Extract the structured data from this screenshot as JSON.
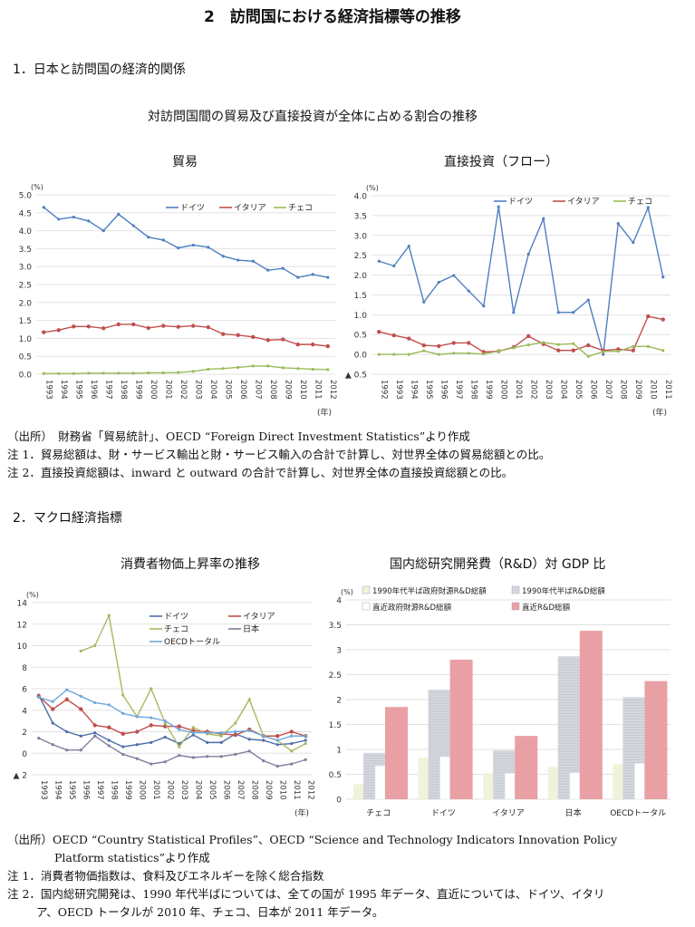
{
  "page_title": "2　訪問国における経済指標等の推移",
  "section1": {
    "heading": "1．日本と訪問国の経済的関係",
    "chart_group_title": "対訪問国間の貿易及び直接投資が全体に占める割合の推移",
    "source": "（出所）　財務省「貿易統計」、OECD “Foreign Direct Investment Statistics”より作成",
    "note1": "注 1．貿易総額は、財・サービス輸出と財・サービス輸入の合計で計算し、対世界全体の貿易総額との比。",
    "note2": "注 2．直接投資総額は、inward と outward の合計で計算し、対世界全体の直接投資総額との比。"
  },
  "section2": {
    "heading": "2．マクロ経済指標",
    "source_line1": "（出所）OECD “Country Statistical Profiles”、OECD “Science and Technology Indicators Innovation Policy",
    "source_line2": "Platform statistics”より作成",
    "note1": "注 1．消費者物価指数は、食料及びエネルギーを除く総合指数",
    "note2_line1": "注 2．国内総研究開発は、1990 年代半ばについては、全ての国が 1995 年データ、直近については、ドイツ、イタリ",
    "note2_line2": "ア、OECD トータルが 2010 年、チェコ、日本が 2011 年データ。"
  },
  "chart_data": [
    {
      "type": "line",
      "title": "貿易",
      "ylabel": "(%)",
      "xlabel": "(年)",
      "ylim": [
        0,
        5
      ],
      "grid": true,
      "legend": "top-right",
      "yticks": [
        0,
        0.5,
        1,
        1.5,
        2,
        2.5,
        3,
        3.5,
        4,
        4.5,
        5
      ],
      "ytick_labels": [
        "0.0",
        "0.5",
        "1.0",
        "1.5",
        "2.0",
        "2.5",
        "3.0",
        "3.5",
        "4.0",
        "4.5",
        "5.0"
      ],
      "x": [
        "1993",
        "1994",
        "1995",
        "1996",
        "1997",
        "1998",
        "1999",
        "2000",
        "2001",
        "2002",
        "2003",
        "2004",
        "2005",
        "2006",
        "2007",
        "2008",
        "2009",
        "2010",
        "2011",
        "2012"
      ],
      "series": [
        {
          "name": "ドイツ",
          "color": "#4f7fbf",
          "values": [
            4.65,
            4.32,
            4.38,
            4.27,
            4.0,
            4.46,
            4.14,
            3.82,
            3.74,
            3.52,
            3.6,
            3.54,
            3.29,
            3.18,
            3.15,
            2.9,
            2.95,
            2.7,
            2.78,
            2.7
          ]
        },
        {
          "name": "イタリア",
          "color": "#c0504d",
          "values": [
            1.17,
            1.23,
            1.33,
            1.33,
            1.28,
            1.39,
            1.39,
            1.29,
            1.35,
            1.32,
            1.35,
            1.31,
            1.12,
            1.09,
            1.04,
            0.95,
            0.97,
            0.83,
            0.83,
            0.78
          ]
        },
        {
          "name": "チェコ",
          "color": "#9bbb59",
          "values": [
            0.02,
            0.02,
            0.02,
            0.03,
            0.03,
            0.03,
            0.03,
            0.04,
            0.04,
            0.05,
            0.08,
            0.14,
            0.16,
            0.19,
            0.23,
            0.23,
            0.18,
            0.16,
            0.14,
            0.13
          ]
        }
      ]
    },
    {
      "type": "line",
      "title": "直接投資（フロー）",
      "ylabel": "(%)",
      "xlabel": "(年)",
      "ylim": [
        -0.5,
        4
      ],
      "grid": true,
      "legend": "top-right",
      "yticks": [
        -0.5,
        0,
        0.5,
        1,
        1.5,
        2,
        2.5,
        3,
        3.5,
        4
      ],
      "ytick_labels": [
        "▲ 0.5",
        "0.0",
        "0.5",
        "1.0",
        "1.5",
        "2.0",
        "2.5",
        "3.0",
        "3.5",
        "4.0"
      ],
      "x": [
        "1992",
        "1993",
        "1994",
        "1995",
        "1996",
        "1997",
        "1998",
        "1999",
        "2000",
        "2001",
        "2002",
        "2003",
        "2004",
        "2005",
        "2006",
        "2007",
        "2008",
        "2009",
        "2010",
        "2011"
      ],
      "series": [
        {
          "name": "ドイツ",
          "color": "#4f7fbf",
          "values": [
            2.35,
            2.23,
            2.73,
            1.32,
            1.82,
            1.99,
            1.6,
            1.22,
            3.72,
            1.06,
            2.53,
            3.42,
            1.06,
            1.06,
            1.37,
            0.0,
            3.3,
            2.82,
            3.7,
            1.95
          ]
        },
        {
          "name": "イタリア",
          "color": "#c0504d",
          "values": [
            0.57,
            0.48,
            0.4,
            0.23,
            0.21,
            0.29,
            0.29,
            0.06,
            0.08,
            0.18,
            0.46,
            0.26,
            0.1,
            0.1,
            0.23,
            0.1,
            0.13,
            0.1,
            0.96,
            0.88
          ]
        },
        {
          "name": "チェコ",
          "color": "#9bbb59",
          "values": [
            0.0,
            0.0,
            0.0,
            0.09,
            0.0,
            0.03,
            0.03,
            0.01,
            0.08,
            0.17,
            0.24,
            0.3,
            0.25,
            0.27,
            -0.05,
            0.07,
            0.08,
            0.2,
            0.2,
            0.1
          ]
        }
      ]
    },
    {
      "type": "line",
      "title": "消費者物価上昇率の推移",
      "ylabel": "(%)",
      "xlabel": "(年)",
      "ylim": [
        -2,
        14
      ],
      "grid": true,
      "legend": "top-right",
      "yticks": [
        -2,
        0,
        2,
        4,
        6,
        8,
        10,
        12,
        14
      ],
      "ytick_labels": [
        "▲ 2",
        "0",
        "2",
        "4",
        "6",
        "8",
        "10",
        "12",
        "14"
      ],
      "x": [
        "1993",
        "1994",
        "1995",
        "1996",
        "1997",
        "1998",
        "1999",
        "2000",
        "2001",
        "2002",
        "2003",
        "2004",
        "2005",
        "2006",
        "2007",
        "2008",
        "2009",
        "2010",
        "2011",
        "2012"
      ],
      "series": [
        {
          "name": "ドイツ",
          "color": "#4f6fa8",
          "values": [
            5.4,
            2.8,
            2.0,
            1.6,
            1.9,
            1.2,
            0.6,
            0.8,
            1.0,
            1.5,
            0.9,
            1.7,
            1.0,
            1.0,
            1.8,
            1.3,
            1.2,
            0.8,
            0.9,
            1.2
          ]
        },
        {
          "name": "イタリア",
          "color": "#c0504d",
          "values": [
            5.3,
            4.1,
            5.0,
            4.1,
            2.6,
            2.4,
            1.8,
            2.0,
            2.6,
            2.5,
            2.5,
            2.1,
            2.0,
            1.8,
            1.7,
            2.2,
            1.6,
            1.6,
            2.0,
            1.6
          ]
        },
        {
          "name": "チェコ",
          "color": "#a8b860",
          "values": [
            null,
            null,
            null,
            9.5,
            10.0,
            12.8,
            5.4,
            3.4,
            6.0,
            2.8,
            0.6,
            2.4,
            1.8,
            1.6,
            2.8,
            5.0,
            1.6,
            1.2,
            0.2,
            0.9
          ]
        },
        {
          "name": "日本",
          "color": "#7f7f9f",
          "values": [
            1.4,
            0.8,
            0.3,
            0.3,
            1.6,
            0.7,
            -0.1,
            -0.5,
            -1.0,
            -0.8,
            -0.2,
            -0.4,
            -0.3,
            -0.3,
            -0.1,
            0.2,
            -0.7,
            -1.2,
            -1.0,
            -0.6
          ]
        },
        {
          "name": "OECDトータル",
          "color": "#6fa8dc",
          "values": [
            5.2,
            4.8,
            5.9,
            5.3,
            4.7,
            4.5,
            3.7,
            3.4,
            3.3,
            3.0,
            2.2,
            1.9,
            1.9,
            1.9,
            2.0,
            2.1,
            1.6,
            1.2,
            1.6,
            1.6
          ]
        }
      ]
    },
    {
      "type": "bar",
      "title": "国内総研究開発費（R&D）対 GDP 比",
      "ylabel": "(%)",
      "ylim": [
        0,
        4
      ],
      "grid": true,
      "legend": "top",
      "yticks": [
        0,
        0.5,
        1,
        1.5,
        2,
        2.5,
        3,
        3.5,
        4
      ],
      "ytick_labels": [
        "0",
        "0.5",
        "1",
        "1.5",
        "2",
        "2.5",
        "3",
        "3.5",
        "4"
      ],
      "categories": [
        "チェコ",
        "ドイツ",
        "イタリア",
        "日本",
        "OECDトータル"
      ],
      "series": [
        {
          "name": "1990年代半ば政府財源R&D総額",
          "color": "#eef3da",
          "values": [
            0.3,
            0.83,
            0.52,
            0.65,
            0.7
          ]
        },
        {
          "name": "1990年代半ばR&D総額",
          "color": "#d4d8de",
          "values": [
            0.93,
            2.2,
            0.98,
            2.87,
            2.05
          ]
        },
        {
          "name": "直近政府財源R&D総額",
          "color": "#ffffff",
          "values": [
            0.67,
            0.85,
            0.52,
            0.53,
            0.72
          ]
        },
        {
          "name": "直近R&D総額",
          "color": "#e8a0a4",
          "values": [
            1.85,
            2.8,
            1.27,
            3.38,
            2.37
          ]
        }
      ]
    }
  ]
}
